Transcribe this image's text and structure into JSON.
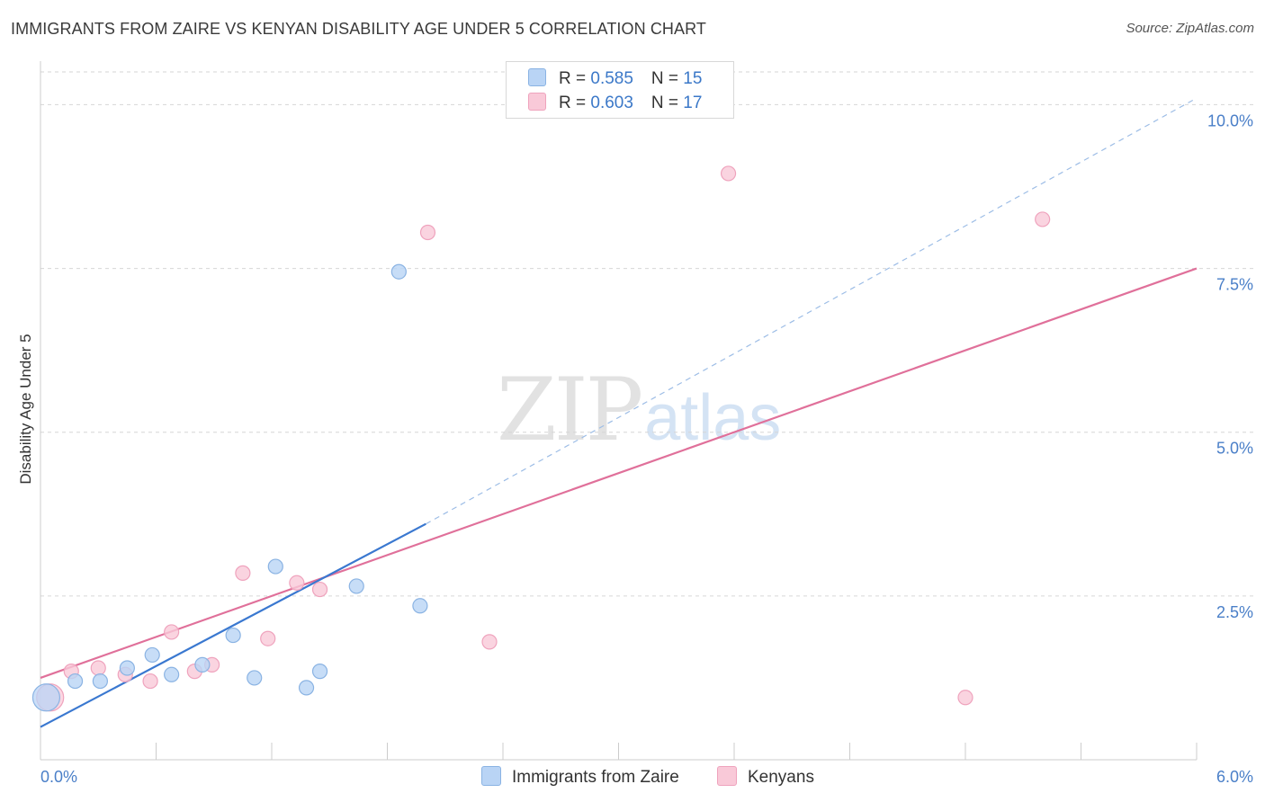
{
  "title": "IMMIGRANTS FROM ZAIRE VS KENYAN DISABILITY AGE UNDER 5 CORRELATION CHART",
  "source": "Source: ZipAtlas.com",
  "watermark": {
    "zip": "ZIP",
    "atlas": "atlas"
  },
  "legend": {
    "series1": {
      "r_label": "R = ",
      "r_value": "0.585",
      "n_label": "N = ",
      "n_value": "15"
    },
    "series2": {
      "r_label": "R = ",
      "r_value": "0.603",
      "n_label": "N = ",
      "n_value": "17"
    }
  },
  "bottom_legend": {
    "series1": "Immigrants from Zaire",
    "series2": "Kenyans"
  },
  "colors": {
    "blue_fill": "#b9d4f5",
    "blue_stroke": "#8ab3e3",
    "blue_line": "#3a78d0",
    "pink_fill": "#f9c9d8",
    "pink_stroke": "#efa3bd",
    "pink_line": "#e0709a",
    "grid": "#d6d6d6",
    "tick_text": "#4a7fc8"
  },
  "chart_data": {
    "type": "scatter",
    "title": "IMMIGRANTS FROM ZAIRE VS KENYAN DISABILITY AGE UNDER 5 CORRELATION CHART",
    "xlabel": "",
    "ylabel": "Disability Age Under 5",
    "xlim": [
      0,
      6.0
    ],
    "ylim": [
      0,
      10.5
    ],
    "x_tick_labels": [
      "0.0%",
      "6.0%"
    ],
    "y_ticks": [
      2.5,
      5.0,
      7.5,
      10.0
    ],
    "y_tick_labels": [
      "2.5%",
      "5.0%",
      "7.5%",
      "10.0%"
    ],
    "grid": true,
    "series": [
      {
        "name": "Immigrants from Zaire",
        "r": 0.585,
        "n": 15,
        "points": [
          {
            "x": 0.03,
            "y": 0.95,
            "big": true
          },
          {
            "x": 0.18,
            "y": 1.2
          },
          {
            "x": 0.31,
            "y": 1.2
          },
          {
            "x": 0.45,
            "y": 1.4
          },
          {
            "x": 0.58,
            "y": 1.6
          },
          {
            "x": 0.68,
            "y": 1.3
          },
          {
            "x": 0.84,
            "y": 1.45
          },
          {
            "x": 1.0,
            "y": 1.9
          },
          {
            "x": 1.11,
            "y": 1.25
          },
          {
            "x": 1.22,
            "y": 2.95
          },
          {
            "x": 1.38,
            "y": 1.1
          },
          {
            "x": 1.45,
            "y": 1.35
          },
          {
            "x": 1.64,
            "y": 2.65
          },
          {
            "x": 1.86,
            "y": 7.45
          },
          {
            "x": 1.97,
            "y": 2.35
          }
        ],
        "trend": {
          "x0": 0.0,
          "y0": 0.5,
          "x1": 2.0,
          "y1": 3.6,
          "dashed_to_x": 6.0,
          "dashed_to_y": 10.1
        }
      },
      {
        "name": "Kenyans",
        "r": 0.603,
        "n": 17,
        "points": [
          {
            "x": 0.05,
            "y": 0.95,
            "big": true
          },
          {
            "x": 0.16,
            "y": 1.35
          },
          {
            "x": 0.3,
            "y": 1.4
          },
          {
            "x": 0.44,
            "y": 1.3
          },
          {
            "x": 0.57,
            "y": 1.2
          },
          {
            "x": 0.68,
            "y": 1.95
          },
          {
            "x": 0.8,
            "y": 1.35
          },
          {
            "x": 0.89,
            "y": 1.45
          },
          {
            "x": 1.05,
            "y": 2.85
          },
          {
            "x": 1.18,
            "y": 1.85
          },
          {
            "x": 1.33,
            "y": 2.7
          },
          {
            "x": 1.45,
            "y": 2.6
          },
          {
            "x": 2.01,
            "y": 8.05
          },
          {
            "x": 2.33,
            "y": 1.8
          },
          {
            "x": 3.57,
            "y": 8.95
          },
          {
            "x": 4.8,
            "y": 0.95
          },
          {
            "x": 5.2,
            "y": 8.25
          }
        ],
        "trend": {
          "x0": 0.0,
          "y0": 1.25,
          "x1": 6.0,
          "y1": 7.5
        }
      }
    ]
  }
}
